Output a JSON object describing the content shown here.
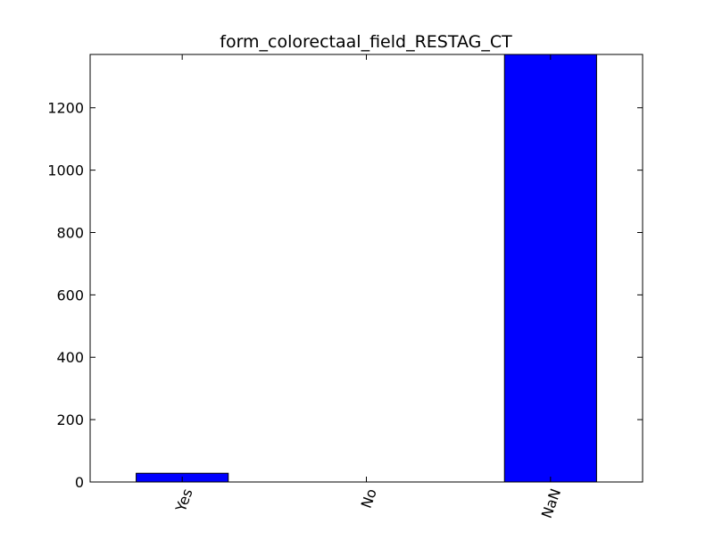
{
  "chart_data": {
    "type": "bar",
    "title": "form_colorectaal_field_RESTAG_CT",
    "xlabel": "",
    "ylabel": "",
    "categories": [
      "Yes",
      "No",
      "NaN"
    ],
    "values": [
      28,
      0,
      1371
    ],
    "ylim": [
      0,
      1371
    ],
    "yticks": [
      0,
      200,
      400,
      600,
      800,
      1000,
      1200
    ],
    "ytick_labels": [
      "0",
      "200",
      "400",
      "600",
      "800",
      "1000",
      "1200"
    ],
    "bar_color": "#0000ff",
    "edge_color": "#000000",
    "grid": false,
    "legend": "none",
    "xtick_rotation_deg": 70
  }
}
